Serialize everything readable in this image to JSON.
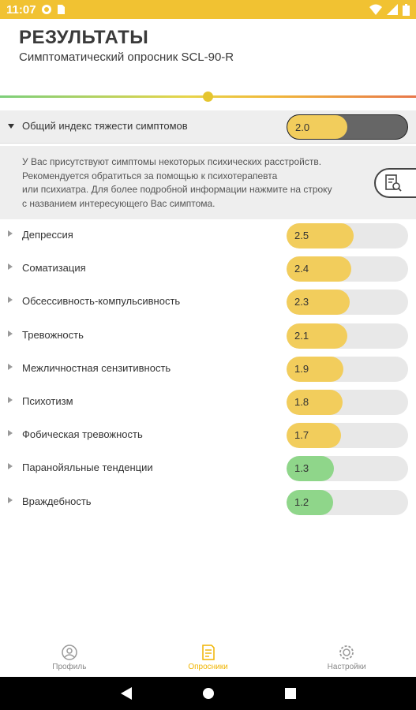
{
  "status_bar": {
    "time": "11:07"
  },
  "header": {
    "title": "РЕЗУЛЬТАТЫ",
    "subtitle": "Симптоматический опросник SCL-90-R"
  },
  "total": {
    "label": "Общий индекс тяжести симптомов",
    "value": "2.0",
    "fraction": 0.5
  },
  "info": {
    "lines": [
      "У Вас присутствуют симптомы некоторых психических расстройств.",
      "Рекомендуется обратиться за помощью к психотерапевта",
      "или психиатра. Для более подробной информации нажмите на строку",
      "с названием интересующего Вас симптома."
    ]
  },
  "items": [
    {
      "label": "Депрессия",
      "value": "2.5",
      "fraction": 0.55,
      "color": "#f2cd5c"
    },
    {
      "label": "Соматизация",
      "value": "2.4",
      "fraction": 0.53,
      "color": "#f2cd5c"
    },
    {
      "label": "Обсессивность-компульсивность",
      "value": "2.3",
      "fraction": 0.52,
      "color": "#f2cd5c"
    },
    {
      "label": "Тревожность",
      "value": "2.1",
      "fraction": 0.5,
      "color": "#f2cd5c"
    },
    {
      "label": "Межличностная сензитивность",
      "value": "1.9",
      "fraction": 0.47,
      "color": "#f2cd5c"
    },
    {
      "label": "Психотизм",
      "value": "1.8",
      "fraction": 0.46,
      "color": "#f2cd5c"
    },
    {
      "label": "Фобическая тревожность",
      "value": "1.7",
      "fraction": 0.45,
      "color": "#f2cd5c"
    },
    {
      "label": "Паранойяльные тенденции",
      "value": "1.3",
      "fraction": 0.39,
      "color": "#8fd68a"
    },
    {
      "label": "Враждебность",
      "value": "1.2",
      "fraction": 0.38,
      "color": "#8fd68a"
    }
  ],
  "colors": {
    "accent": "#f1c232",
    "total_fill": "#f2cd5c",
    "active_nav": "#f0b400"
  },
  "bottom_nav": [
    {
      "label": "Профиль",
      "icon": "profile-icon",
      "active": false
    },
    {
      "label": "Опросники",
      "icon": "questionnaire-icon",
      "active": true
    },
    {
      "label": "Настройки",
      "icon": "settings-icon",
      "active": false
    }
  ]
}
